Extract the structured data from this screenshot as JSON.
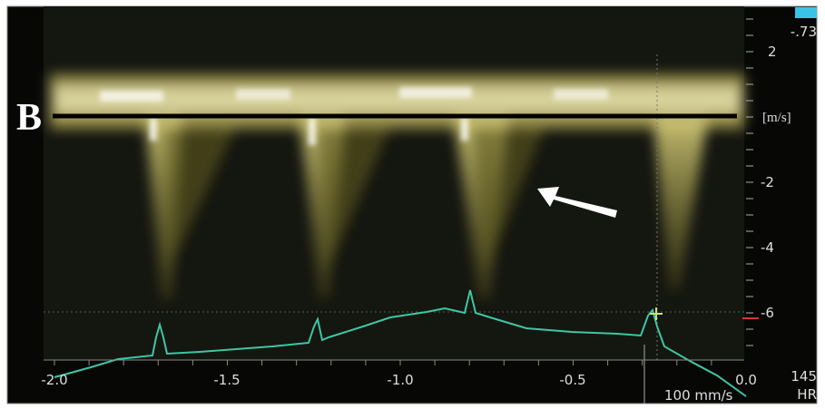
{
  "panel_label": "B",
  "scale_value": "-.73",
  "velocity_axis": {
    "ticks": [
      "2",
      "-2",
      "-4",
      "-6"
    ],
    "unit": "[m/s]"
  },
  "time_axis": {
    "ticks": [
      "-2.0",
      "-1.5",
      "-1.0",
      "-0.5",
      "0.0"
    ]
  },
  "sweep_speed": "100 mm/s",
  "heart_rate": {
    "value": "145",
    "label": "HR"
  }
}
